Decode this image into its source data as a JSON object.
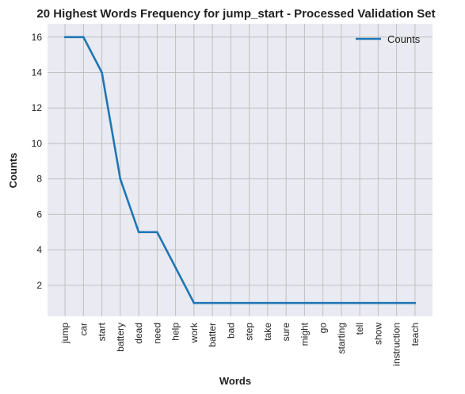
{
  "chart_data": {
    "type": "line",
    "title": "20 Highest Words Frequency for jump_start - Processed Validation Set",
    "xlabel": "Words",
    "ylabel": "Counts",
    "categories": [
      "jump",
      "car",
      "start",
      "battery",
      "dead",
      "need",
      "help",
      "work",
      "batter",
      "bad",
      "step",
      "take",
      "sure",
      "might",
      "go",
      "starting",
      "tell",
      "show",
      "instruction",
      "teach"
    ],
    "series": [
      {
        "name": "Counts",
        "values": [
          16,
          16,
          14,
          8,
          5,
          5,
          3,
          1,
          1,
          1,
          1,
          1,
          1,
          1,
          1,
          1,
          1,
          1,
          1,
          1
        ],
        "color": "#1f77b4"
      }
    ],
    "ylim": [
      0.25,
      16.75
    ],
    "yticks": [
      2,
      4,
      6,
      8,
      10,
      12,
      14,
      16
    ],
    "grid": true,
    "legend_position": "top-right",
    "background_color": "#eaeaf2",
    "grid_color": "#c0c0c0"
  }
}
